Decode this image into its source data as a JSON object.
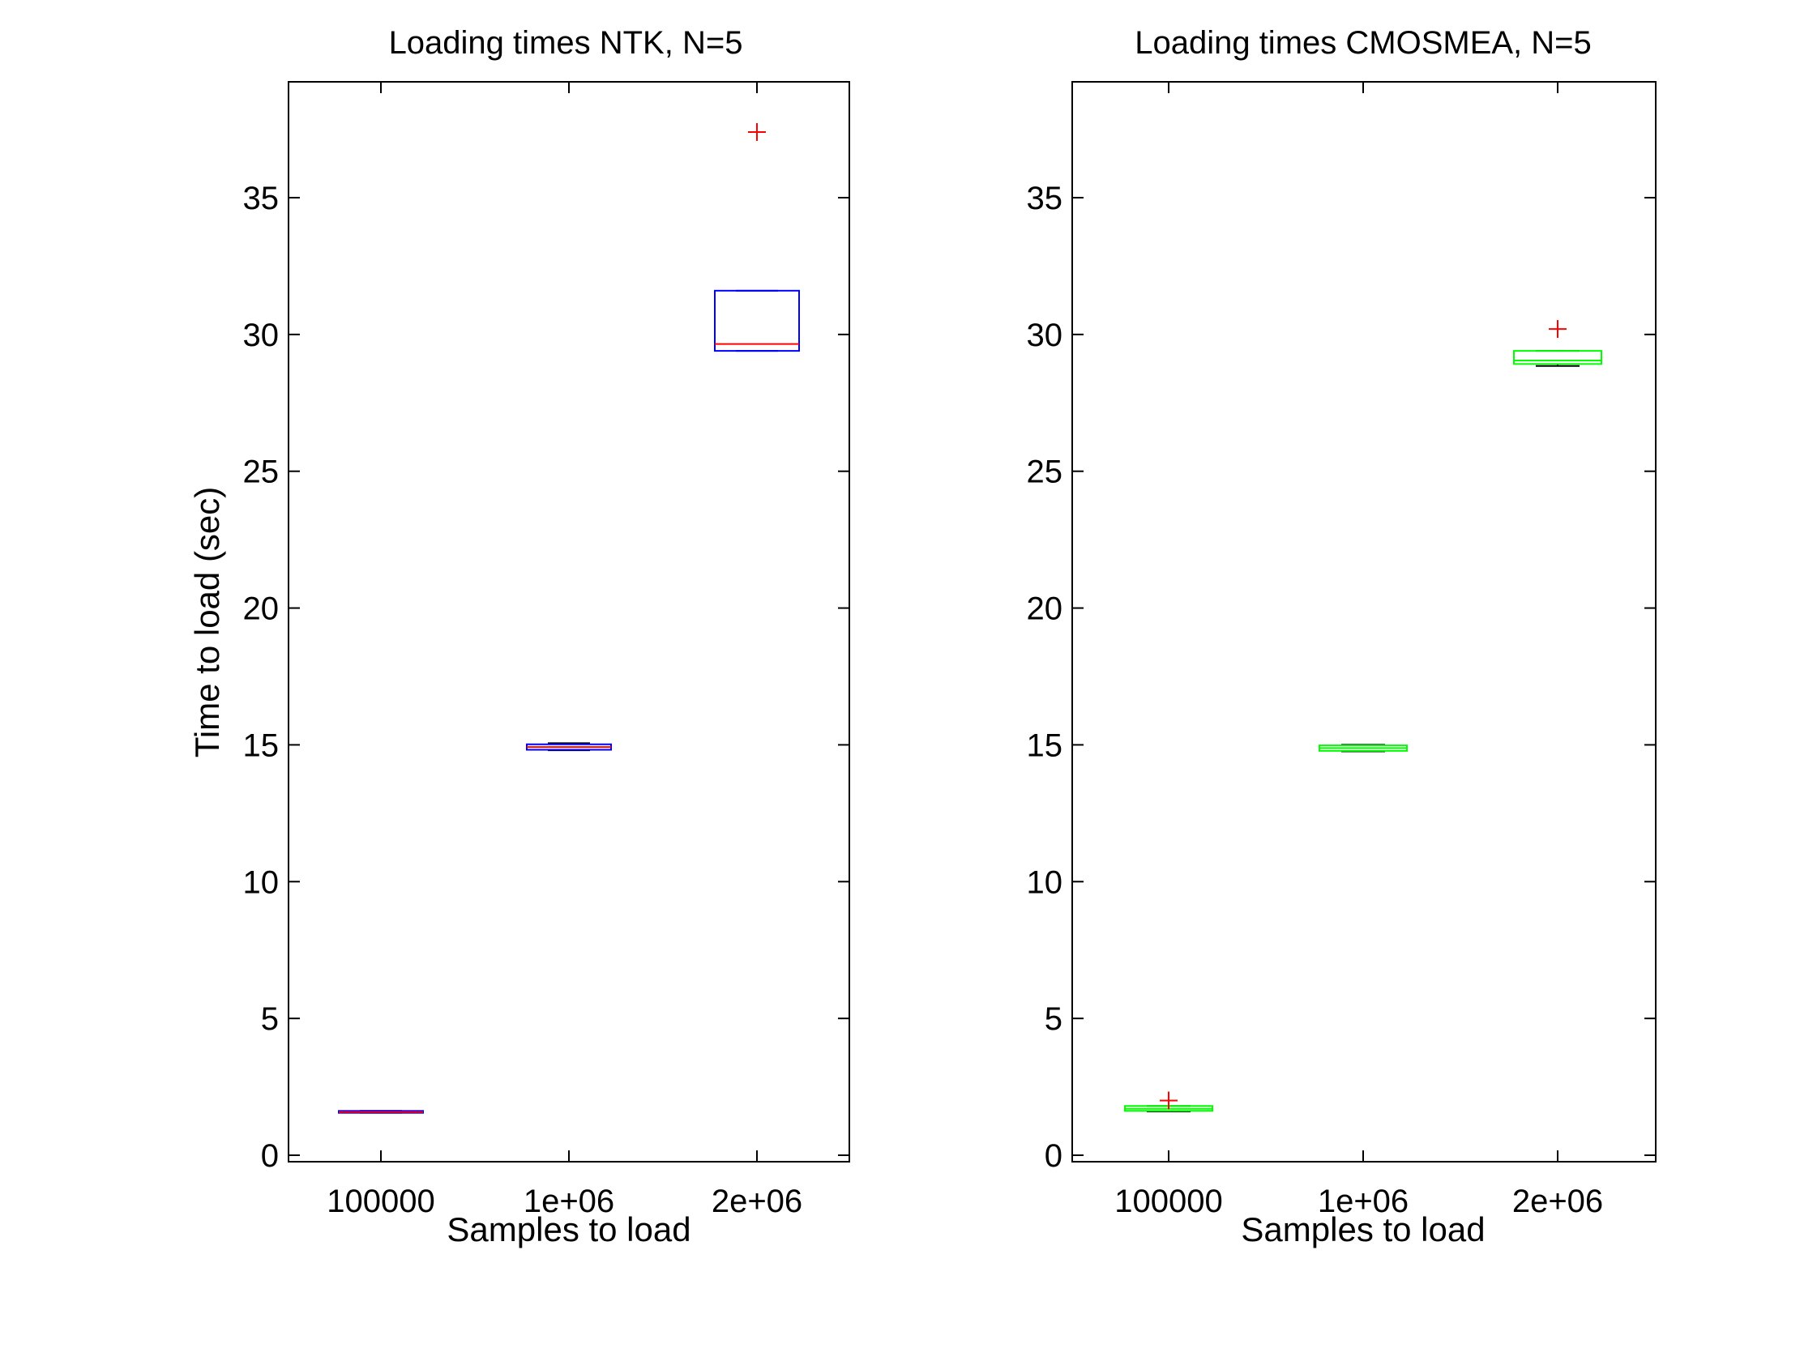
{
  "chart_data": [
    {
      "type": "box",
      "title": "Loading times NTK, N=5",
      "xlabel": "Samples to load",
      "ylabel": "Time to load (sec)",
      "categories": [
        "100000",
        "1e+06",
        "2e+06"
      ],
      "yticks": [
        "0",
        "5",
        "10",
        "15",
        "20",
        "25",
        "30",
        "35"
      ],
      "ylim": [
        -0.5,
        39
      ],
      "box_color": "#0000ff",
      "median_color": "#ff0000",
      "outlier_color": "#ff0000",
      "boxes": [
        {
          "q1": 1.55,
          "median": 1.58,
          "q3": 1.62,
          "whisker_low": 1.55,
          "whisker_high": 1.62,
          "outliers": []
        },
        {
          "q1": 14.82,
          "median": 14.92,
          "q3": 15.02,
          "whisker_low": 14.8,
          "whisker_high": 15.06,
          "outliers": []
        },
        {
          "q1": 29.4,
          "median": 29.65,
          "q3": 31.6,
          "whisker_low": 29.4,
          "whisker_high": 31.6,
          "outliers": [
            37.4
          ]
        }
      ]
    },
    {
      "type": "box",
      "title": "Loading times CMOSMEA, N=5",
      "xlabel": "Samples to load",
      "ylabel": "",
      "categories": [
        "100000",
        "1e+06",
        "2e+06"
      ],
      "yticks": [
        "0",
        "5",
        "10",
        "15",
        "20",
        "25",
        "30",
        "35"
      ],
      "ylim": [
        -0.5,
        39
      ],
      "box_color": "#00ff00",
      "median_color": "#00ff00",
      "outlier_color": "#ff0000",
      "boxes": [
        {
          "q1": 1.62,
          "median": 1.7,
          "q3": 1.8,
          "whisker_low": 1.6,
          "whisker_high": 1.8,
          "outliers": [
            2.0
          ]
        },
        {
          "q1": 14.78,
          "median": 14.88,
          "q3": 14.98,
          "whisker_low": 14.76,
          "whisker_high": 15.0,
          "outliers": []
        },
        {
          "q1": 28.92,
          "median": 29.05,
          "q3": 29.4,
          "whisker_low": 28.85,
          "whisker_high": 29.4,
          "outliers": [
            30.2
          ]
        }
      ]
    }
  ]
}
